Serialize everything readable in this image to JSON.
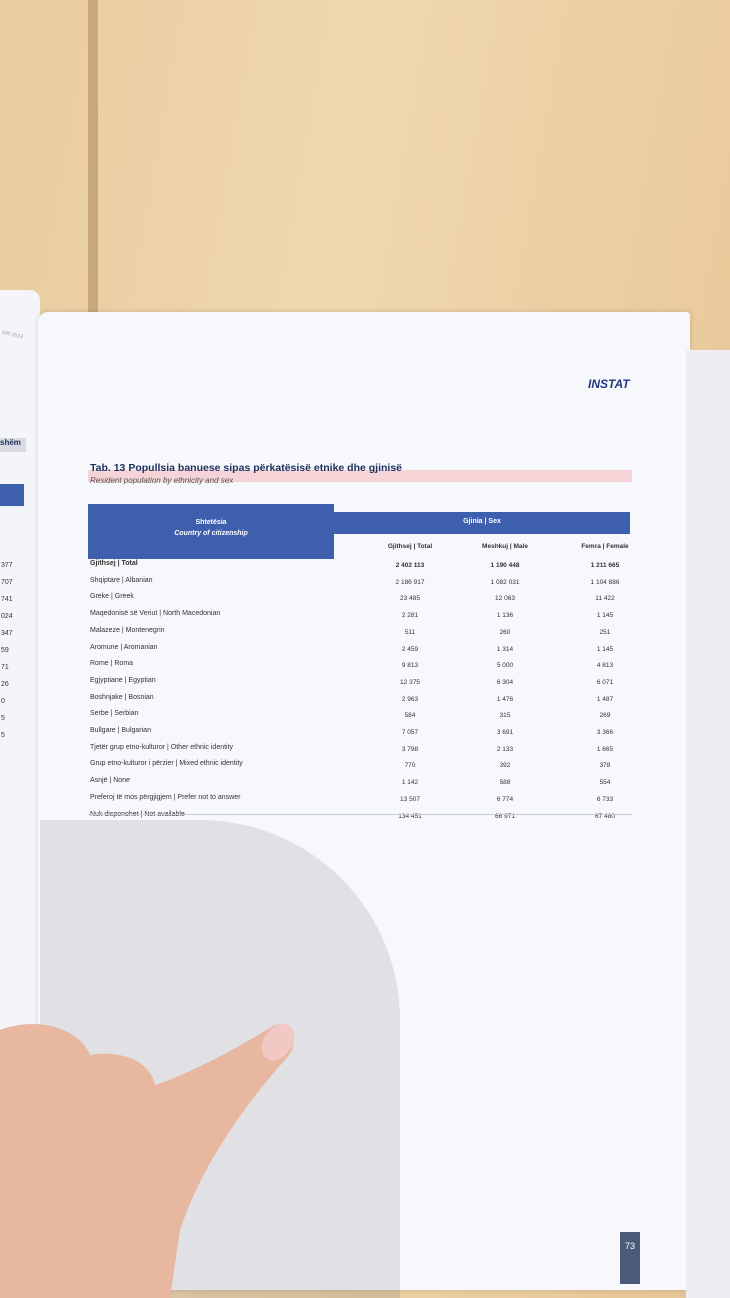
{
  "left_page": {
    "header": "ERI 2023",
    "tab": "shëm",
    "numbers": [
      "377",
      "707",
      "741",
      "024",
      "347",
      "59",
      "71",
      "26",
      "0",
      "5",
      "5"
    ]
  },
  "header": {
    "logo": "INSTAT",
    "title": "Tab. 13 Popullsia banuese sipas përkatësisë etnike dhe gjinisë",
    "subtitle": "Resident population by ethnicity and sex"
  },
  "table": {
    "group_header": "Gjinia | Sex",
    "first_header": [
      "Shtetësia",
      "Country of citizenship"
    ],
    "columns": [
      "Gjithsej | Total",
      "Meshkuj | Male",
      "Femra | Female"
    ],
    "rows": [
      [
        "Gjithsej | Total",
        "2 402 113",
        "1 190 448",
        "1 211 665"
      ],
      [
        "Shqiptare | Albanian",
        "2 186 917",
        "1 082 031",
        "1 104 886"
      ],
      [
        "Greke | Greek",
        "23 485",
        "12 063",
        "11 422"
      ],
      [
        "Maqedonisë së Veriut | North Macedonian",
        "2 281",
        "1 136",
        "1 145"
      ],
      [
        "Malazeze | Montenegrin",
        "511",
        "260",
        "251"
      ],
      [
        "Aromune | Aromanian",
        "2 459",
        "1 314",
        "1 145"
      ],
      [
        "Rome | Roma",
        "9 813",
        "5 000",
        "4 813"
      ],
      [
        "Egjyptiane | Egyptian",
        "12 375",
        "6 304",
        "6 071"
      ],
      [
        "Boshnjake | Bosnian",
        "2 963",
        "1 476",
        "1 487"
      ],
      [
        "Serbe | Serbian",
        "584",
        "315",
        "269"
      ],
      [
        "Bullgare | Bulgarian",
        "7 057",
        "3 691",
        "3 366"
      ],
      [
        "Tjetër grup etno-kulturor | Other ethnic identity",
        "3 798",
        "2 133",
        "1 665"
      ],
      [
        "Grup etno-kulturor i përzier | Mixed ethnic identity",
        "770",
        "392",
        "378"
      ],
      [
        "Asnjë | None",
        "1 142",
        "588",
        "554"
      ],
      [
        "Preferoj të mos përgjigjem | Prefer not to answer",
        "13 507",
        "6 774",
        "6 733"
      ],
      [
        "Nuk disponohet | Not available",
        "134 451",
        "66 971",
        "67 480"
      ]
    ]
  },
  "footer": {
    "page_number": "73"
  }
}
